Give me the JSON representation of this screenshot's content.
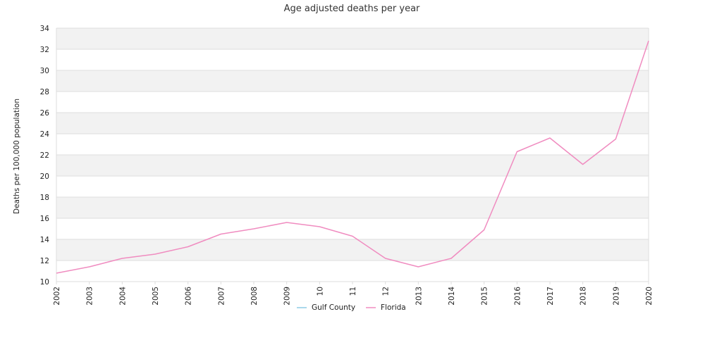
{
  "chart_data": {
    "type": "line",
    "title": "Age adjusted deaths per year",
    "ylabel": "Deaths per 100,000 population",
    "xlabel": "",
    "x": [
      "2002",
      "2003",
      "2004",
      "2005",
      "2006",
      "2007",
      "2008",
      "2009",
      "10",
      "11",
      "12",
      "2013",
      "2014",
      "2015",
      "2016",
      "2017",
      "2018",
      "2019",
      "2020"
    ],
    "ylim": [
      10,
      34
    ],
    "yticks": [
      10,
      12,
      14,
      16,
      18,
      20,
      22,
      24,
      26,
      28,
      30,
      32,
      34
    ],
    "grid": true,
    "legend_position": "bottom",
    "series": [
      {
        "name": "Gulf County",
        "color": "#8ecae6",
        "values": [
          null,
          null,
          null,
          null,
          null,
          null,
          null,
          null,
          null,
          null,
          null,
          null,
          null,
          null,
          null,
          null,
          null,
          null,
          null
        ]
      },
      {
        "name": "Florida",
        "color": "#f08cc0",
        "values": [
          10.8,
          11.4,
          12.2,
          12.6,
          13.3,
          14.5,
          15.0,
          15.6,
          15.2,
          14.3,
          12.2,
          11.4,
          12.2,
          14.9,
          22.3,
          23.6,
          21.1,
          23.5,
          32.8
        ]
      }
    ]
  }
}
